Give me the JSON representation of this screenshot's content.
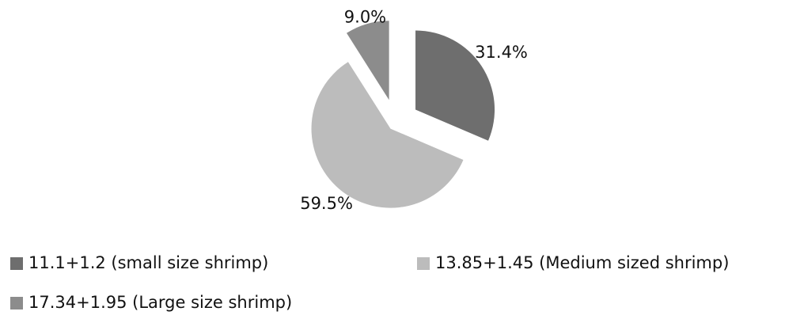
{
  "chart_data": {
    "type": "pie",
    "categories": [
      "11.1+1.2 (small size shrimp)",
      "13.85+1.45 (Medium sized shrimp)",
      "17.34+1.95 (Large size shrimp)"
    ],
    "values": [
      31.4,
      59.5,
      9.0
    ],
    "value_labels": [
      "31.4%",
      "59.5%",
      "9.0%"
    ],
    "colors": [
      "#6e6e6e",
      "#bcbcbc",
      "#8c8c8c"
    ],
    "legend": "bottom"
  }
}
